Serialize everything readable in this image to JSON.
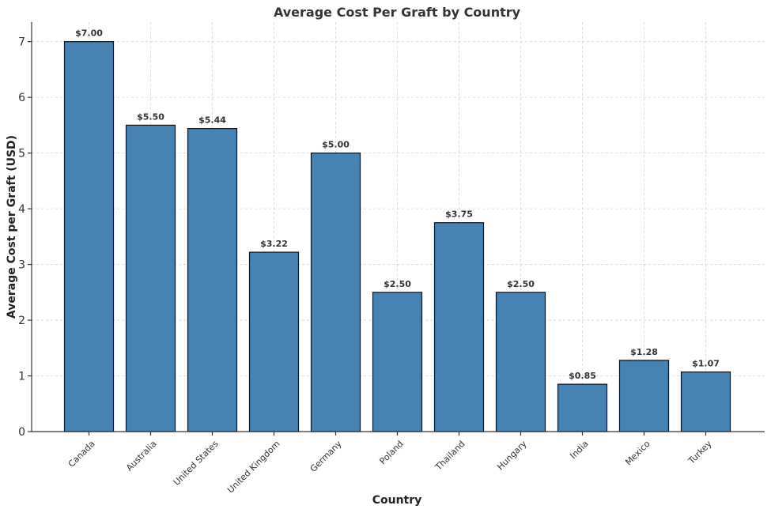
{
  "chart_data": {
    "type": "bar",
    "title": "Average Cost Per Graft by Country",
    "xlabel": "Country",
    "ylabel": "Average Cost per Graft (USD)",
    "categories": [
      "Canada",
      "Australia",
      "United States",
      "United Kingdom",
      "Germany",
      "Poland",
      "Thailand",
      "Hungary",
      "India",
      "Mexico",
      "Turkey"
    ],
    "values": [
      7.0,
      5.5,
      5.44,
      3.22,
      5.0,
      2.5,
      3.75,
      2.5,
      0.85,
      1.28,
      1.07
    ],
    "data_labels": [
      "$7.00",
      "$5.50",
      "$5.44",
      "$3.22",
      "$5.00",
      "$2.50",
      "$3.75",
      "$2.50",
      "$0.85",
      "$1.28",
      "$1.07"
    ],
    "yticks": [
      "0",
      "1",
      "2",
      "3",
      "4",
      "5",
      "6",
      "7"
    ],
    "ylim": [
      0,
      7.35
    ],
    "grid": true,
    "bar_color": "#4682b4",
    "edge_color": "#111111"
  }
}
